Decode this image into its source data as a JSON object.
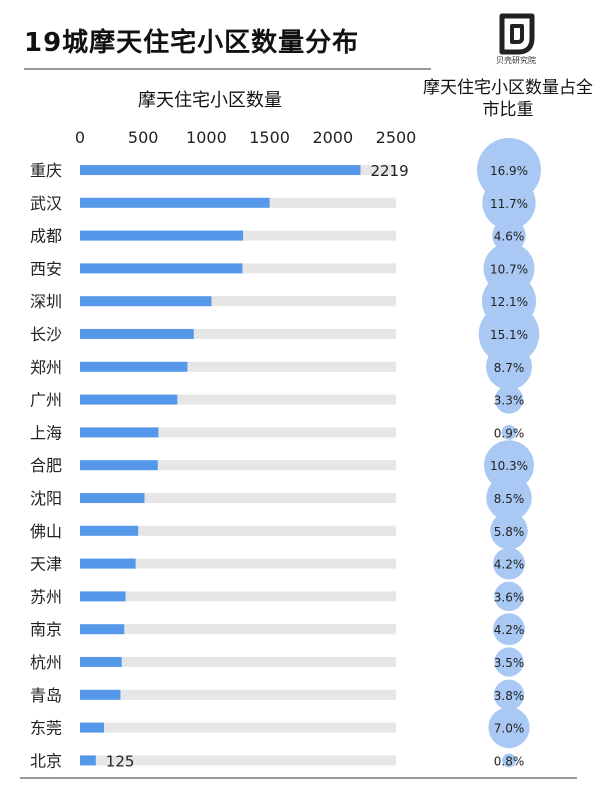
{
  "header": {
    "title": "19城摩天住宅小区数量分布",
    "logo_text": "贝壳研究院"
  },
  "panels": {
    "bar_title": "摩天住宅小区数量",
    "bubble_title": "摩天住宅小区数量占全市比重"
  },
  "colors": {
    "bar": "#5598ea",
    "track": "#e6e6e6",
    "bubble": "#a9c9f4"
  },
  "chart_data": [
    {
      "type": "bar",
      "orientation": "horizontal",
      "title": "摩天住宅小区数量",
      "categories": [
        "重庆",
        "武汉",
        "成都",
        "西安",
        "深圳",
        "长沙",
        "郑州",
        "广州",
        "上海",
        "合肥",
        "沈阳",
        "佛山",
        "天津",
        "苏州",
        "南京",
        "杭州",
        "青岛",
        "东莞",
        "北京"
      ],
      "values": [
        2219,
        1500,
        1290,
        1285,
        1040,
        900,
        850,
        770,
        620,
        615,
        510,
        460,
        440,
        360,
        350,
        330,
        320,
        190,
        125
      ],
      "xlim": [
        0,
        2500
      ],
      "xticks": [
        0,
        500,
        1000,
        1500,
        2000,
        2500
      ],
      "data_labels": {
        "重庆": "2219",
        "北京": "125"
      },
      "grid": false
    },
    {
      "type": "bubble",
      "title": "摩天住宅小区数量占全市比重",
      "categories": [
        "重庆",
        "武汉",
        "成都",
        "西安",
        "深圳",
        "长沙",
        "郑州",
        "广州",
        "上海",
        "合肥",
        "沈阳",
        "佛山",
        "天津",
        "苏州",
        "南京",
        "杭州",
        "青岛",
        "东莞",
        "北京"
      ],
      "values": [
        16.9,
        11.7,
        4.6,
        10.7,
        12.1,
        15.1,
        8.7,
        3.3,
        0.9,
        10.3,
        8.5,
        5.8,
        4.2,
        3.6,
        4.2,
        3.5,
        3.8,
        7.0,
        0.8
      ],
      "labels": [
        "16.9%",
        "11.7%",
        "4.6%",
        "10.7%",
        "12.1%",
        "15.1%",
        "8.7%",
        "3.3%",
        "0.9%",
        "10.3%",
        "8.5%",
        "5.8%",
        "4.2%",
        "3.6%",
        "4.2%",
        "3.5%",
        "3.8%",
        "7.0%",
        "0.8%"
      ],
      "unit": "%"
    }
  ]
}
